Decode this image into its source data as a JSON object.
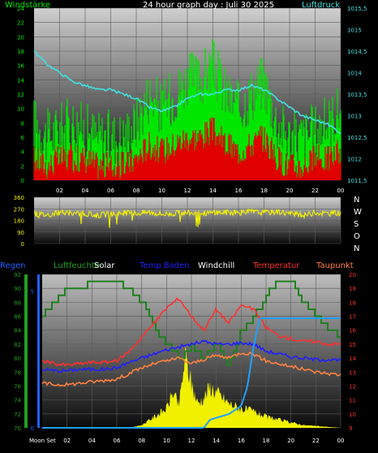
{
  "chart_data": [
    {
      "type": "line",
      "title": "24 hour graph day : Juli 30 2025",
      "left_label": "Windstärke",
      "right_label": "Luftdruck",
      "left_ticks": [
        "0",
        "2",
        "4",
        "6",
        "8",
        "10",
        "12",
        "14",
        "16",
        "18",
        "20",
        "22",
        "24"
      ],
      "right_ticks": [
        "1011,5",
        "1012",
        "1012,5",
        "1013",
        "1013,5",
        "1014",
        "1014,5",
        "1015",
        "1015,5"
      ],
      "x_ticks": [
        "02",
        "04",
        "06",
        "08",
        "10",
        "12",
        "14",
        "16",
        "18",
        "20",
        "22",
        "00"
      ],
      "left_ylim": [
        0,
        24
      ],
      "right_ylim": [
        1011.5,
        1015.5
      ],
      "series": [
        {
          "color": "#00e600",
          "x": [
            0,
            1,
            2,
            3,
            4,
            5,
            6,
            7,
            8,
            9,
            10,
            11,
            12,
            13,
            14,
            15,
            16,
            17,
            18,
            19,
            20,
            21,
            22,
            23,
            24
          ],
          "values": [
            8,
            6,
            7,
            8,
            7,
            6,
            6,
            6,
            8,
            12,
            10,
            12,
            14,
            14,
            16,
            12,
            10,
            12,
            14,
            8,
            6,
            6,
            7,
            8,
            10
          ]
        },
        {
          "color": "#e00000",
          "x": [
            0,
            1,
            2,
            3,
            4,
            5,
            6,
            7,
            8,
            9,
            10,
            11,
            12,
            13,
            14,
            15,
            16,
            17,
            18,
            19,
            20,
            21,
            22,
            23,
            24
          ],
          "values": [
            3,
            2,
            3,
            3,
            3,
            2,
            2,
            2,
            3,
            5,
            4,
            5,
            6,
            6,
            7,
            5,
            4,
            5,
            6,
            3,
            2,
            2,
            3,
            3,
            4
          ]
        },
        {
          "color": "#40e0e0",
          "x": [
            0,
            1,
            2,
            3,
            4,
            5,
            6,
            7,
            8,
            9,
            10,
            11,
            12,
            13,
            14,
            15,
            16,
            17,
            18,
            19,
            20,
            21,
            22,
            23,
            24
          ],
          "values": [
            1014.5,
            1014.2,
            1014.0,
            1013.8,
            1013.7,
            1013.6,
            1013.6,
            1013.5,
            1013.4,
            1013.2,
            1013.1,
            1013.2,
            1013.4,
            1013.5,
            1013.5,
            1013.6,
            1013.6,
            1013.7,
            1013.6,
            1013.4,
            1013.2,
            1013.0,
            1012.9,
            1012.8,
            1012.6
          ]
        }
      ]
    },
    {
      "type": "line",
      "left_ticks": [
        "0",
        "90",
        "180",
        "270",
        "360"
      ],
      "right_labels": [
        "N",
        "W",
        "S",
        "O",
        "N"
      ],
      "ylim": [
        0,
        360
      ],
      "series": [
        {
          "color": "#f0f000",
          "x": [
            0,
            1,
            2,
            3,
            4,
            5,
            6,
            7,
            8,
            9,
            10,
            11,
            12,
            13,
            14,
            15,
            16,
            17,
            18,
            19,
            20,
            21,
            22,
            23,
            24
          ],
          "values": [
            230,
            225,
            240,
            235,
            230,
            220,
            230,
            240,
            235,
            245,
            230,
            235,
            240,
            235,
            240,
            245,
            240,
            250,
            240,
            250,
            235,
            220,
            240,
            235,
            240
          ]
        }
      ]
    },
    {
      "type": "line",
      "legend": [
        "Regen",
        "Luftfeuchte",
        "Solar",
        "Temp Boden",
        "Windchill",
        "Temperatur",
        "Taupunkt"
      ],
      "legend_colors": [
        "#2060ff",
        "#20a020",
        "#ffffff",
        "#2020ff",
        "#ffffff",
        "#ff3030",
        "#ff8040"
      ],
      "left_ticks": [
        "70",
        "72",
        "74",
        "76",
        "78",
        "80",
        "82",
        "84",
        "86",
        "88",
        "90",
        "92"
      ],
      "left_ylim": [
        70,
        92
      ],
      "rain_ticks": [
        "0",
        "5"
      ],
      "right_ticks": [
        "9",
        "10",
        "11",
        "12",
        "13",
        "14",
        "15",
        "16",
        "17",
        "18",
        "19",
        "20"
      ],
      "right_ylim": [
        9,
        20
      ],
      "x_ticks": [
        "Moon Set",
        "02",
        "04",
        "06",
        "08",
        "10",
        "12",
        "14",
        "16",
        "18",
        "20",
        "22",
        "00"
      ],
      "series": [
        {
          "name": "Luftfeuchte",
          "color": "#208020",
          "axis": "left",
          "x": [
            0,
            0.5,
            1,
            2,
            3,
            4,
            5,
            6,
            7,
            8,
            8.5,
            9,
            10,
            11,
            12,
            13,
            14,
            15,
            16,
            17,
            18,
            19,
            20,
            21,
            22,
            23,
            24
          ],
          "values": [
            86,
            87,
            88,
            90,
            90,
            91,
            91,
            91,
            90,
            88,
            86,
            84,
            82,
            80,
            82,
            80,
            82,
            79,
            84,
            86,
            89,
            91,
            91,
            88,
            86,
            84,
            83
          ]
        },
        {
          "name": "Temperatur",
          "color": "#ff3030",
          "axis": "right",
          "x": [
            0,
            1,
            2,
            3,
            4,
            5,
            6,
            7,
            8,
            9,
            10,
            11,
            12,
            13,
            14,
            15,
            16,
            17,
            18,
            19,
            20,
            21,
            22,
            23,
            24
          ],
          "values": [
            13.8,
            13.6,
            13.5,
            13.6,
            13.7,
            13.7,
            13.8,
            14.5,
            15.5,
            16.5,
            17.6,
            18.3,
            17.0,
            16.0,
            17.5,
            16.5,
            17.8,
            17.5,
            16.2,
            15.6,
            15.4,
            15.2,
            15.2,
            15.0,
            15.0
          ]
        },
        {
          "name": "Temp Boden",
          "color": "#2020ff",
          "axis": "right",
          "x": [
            0,
            1,
            2,
            3,
            4,
            5,
            6,
            7,
            8,
            9,
            10,
            11,
            12,
            13,
            14,
            15,
            16,
            17,
            18,
            19,
            20,
            21,
            22,
            23,
            24
          ],
          "values": [
            13.2,
            13.1,
            13.1,
            13.2,
            13.2,
            13.2,
            13.3,
            13.7,
            14.0,
            14.3,
            14.6,
            14.8,
            15.0,
            15.2,
            15.0,
            15.0,
            15.1,
            15.0,
            14.5,
            14.3,
            14.1,
            14.0,
            13.9,
            13.9,
            13.8
          ]
        },
        {
          "name": "Taupunkt",
          "color": "#ff8040",
          "axis": "right",
          "x": [
            0,
            1,
            2,
            3,
            4,
            5,
            6,
            7,
            8,
            9,
            10,
            11,
            12,
            13,
            14,
            15,
            16,
            17,
            18,
            19,
            20,
            21,
            22,
            23,
            24
          ],
          "values": [
            12.2,
            12.1,
            12.1,
            12.2,
            12.3,
            12.4,
            12.5,
            12.9,
            13.3,
            13.6,
            13.8,
            14.0,
            13.6,
            13.9,
            14.2,
            14.0,
            14.4,
            14.3,
            13.8,
            13.6,
            13.4,
            13.2,
            13.0,
            12.9,
            12.8
          ]
        },
        {
          "name": "Regen",
          "color": "#20a0ff",
          "axis": "rain",
          "x": [
            0,
            13,
            13.5,
            15,
            16,
            16.5,
            17,
            17.5,
            18,
            24
          ],
          "values": [
            0,
            0,
            0.3,
            0.5,
            0.8,
            1.5,
            3.0,
            4.0,
            4.0,
            4.0
          ]
        }
      ],
      "solar": {
        "color": "#f0f000",
        "x": [
          0,
          7,
          8,
          9,
          10,
          10.5,
          11,
          11.5,
          12,
          12.5,
          13,
          13.5,
          14,
          15,
          16,
          17,
          18,
          19,
          20,
          21,
          24
        ],
        "values": [
          0,
          0,
          0.1,
          0.4,
          0.7,
          1.3,
          0.8,
          2.6,
          1.6,
          0.9,
          1.1,
          1.5,
          1.3,
          0.9,
          0.7,
          0.6,
          0.4,
          0.3,
          0.2,
          0.1,
          0
        ]
      }
    }
  ]
}
